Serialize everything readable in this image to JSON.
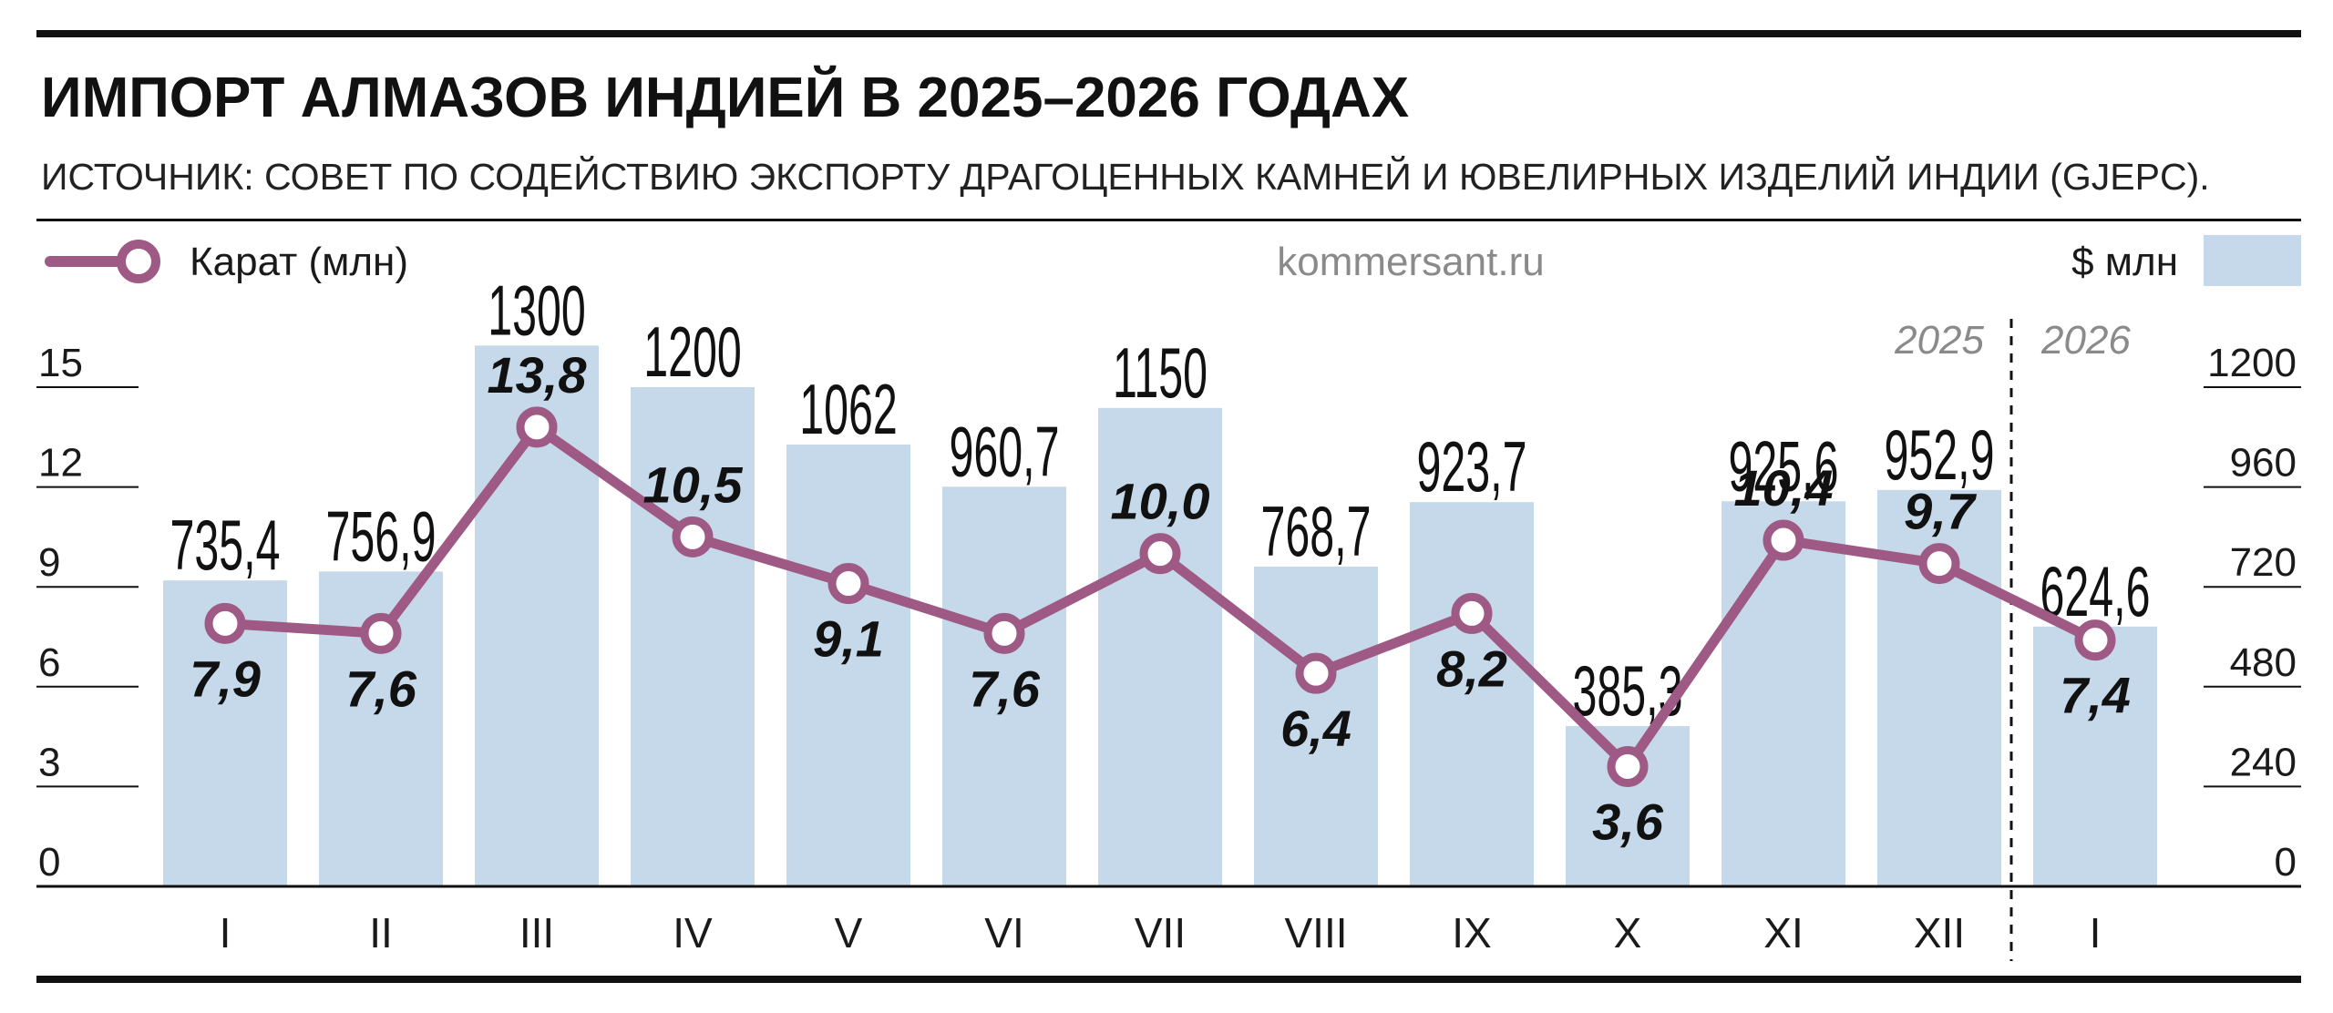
{
  "header": {
    "title": "ИМПОРТ АЛМАЗОВ ИНДИЕЙ В 2025–2026 ГОДАХ",
    "subtitle": "ИСТОЧНИК: СОВЕТ ПО СОДЕЙСТВИЮ ЭКСПОРТУ ДРАГОЦЕННЫХ КАМНЕЙ И ЮВЕЛИРНЫХ ИЗДЕЛИЙ ИНДИИ (GJEPC)."
  },
  "legend": {
    "line_label": "Карат (млн)",
    "bar_label": "$ млн",
    "placement": "top"
  },
  "watermark": "kommersant.ru",
  "years": [
    "2025",
    "2026"
  ],
  "colors": {
    "bar": "#c6d9ea",
    "line": "#9e5a84",
    "marker_fill": "#ffffff",
    "axis": "#111111"
  },
  "chart_data": {
    "type": "bar",
    "categories": [
      "I",
      "II",
      "III",
      "IV",
      "V",
      "VI",
      "VII",
      "VIII",
      "IX",
      "X",
      "XI",
      "XII",
      "I"
    ],
    "series": [
      {
        "name": "$ млн",
        "type": "bar",
        "axis": "right",
        "values": [
          735.4,
          756.9,
          1300,
          1200,
          1062,
          960.7,
          1150,
          768.7,
          923.7,
          385.3,
          925.6,
          952.9,
          624.6
        ],
        "labels": [
          "735,4",
          "756,9",
          "1300",
          "1200",
          "1062",
          "960,7",
          "1150",
          "768,7",
          "923,7",
          "385,3",
          "925,6",
          "952,9",
          "624,6"
        ]
      },
      {
        "name": "Карат (млн)",
        "type": "line",
        "axis": "left",
        "values": [
          7.9,
          7.6,
          13.8,
          10.5,
          9.1,
          7.6,
          10.0,
          6.4,
          8.2,
          3.6,
          10.4,
          9.7,
          7.4
        ],
        "labels": [
          "7,9",
          "7,6",
          "13,8",
          "10,5",
          "9,1",
          "7,6",
          "10,0",
          "6,4",
          "8,2",
          "3,6",
          "10,4",
          "9,7",
          "7,4"
        ],
        "label_side": [
          "below",
          "below",
          "above",
          "above",
          "below",
          "below",
          "above",
          "below",
          "below",
          "below",
          "above",
          "above",
          "below"
        ]
      }
    ],
    "y_left": {
      "range": [
        0,
        15
      ],
      "ticks": [
        0,
        3,
        6,
        9,
        12,
        15
      ],
      "tick_labels": [
        "0",
        "3",
        "6",
        "9",
        "12",
        "15"
      ]
    },
    "y_right": {
      "range": [
        0,
        1200
      ],
      "ticks": [
        0,
        240,
        480,
        720,
        960,
        1200
      ],
      "tick_labels": [
        "0",
        "240",
        "480",
        "720",
        "960",
        "1200"
      ]
    },
    "year_split_after_index": 11,
    "grid": false
  }
}
